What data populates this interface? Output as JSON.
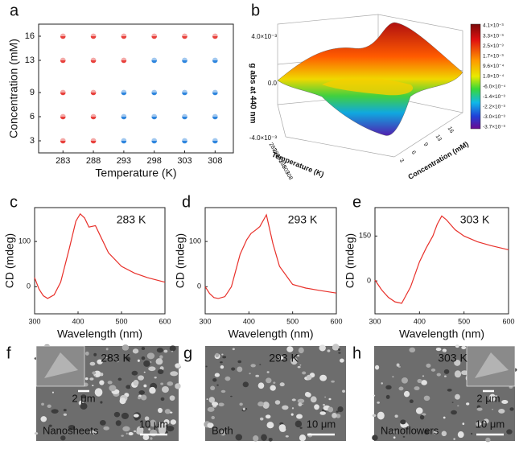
{
  "panel_labels": [
    "a",
    "b",
    "c",
    "d",
    "e",
    "f",
    "g",
    "h"
  ],
  "chart_data": [
    {
      "type": "scatter",
      "x_label": "Temperature (K)",
      "y_label": "Concentration (mM)",
      "xlim": [
        279,
        311
      ],
      "ylim": [
        1.5,
        17.5
      ],
      "xticks": [
        283,
        288,
        293,
        298,
        303,
        308
      ],
      "yticks": [
        3,
        6,
        9,
        13,
        16
      ],
      "series": [
        {
          "color": "#e8413c",
          "x": [
            283,
            288,
            293,
            298,
            303,
            308,
            283,
            288,
            293,
            283,
            288,
            283,
            288,
            283,
            288
          ],
          "y": [
            16,
            16,
            16,
            16,
            16,
            16,
            13,
            13,
            13,
            9,
            9,
            6,
            6,
            3,
            3
          ]
        },
        {
          "color": "#2f86de",
          "x": [
            298,
            303,
            308,
            293,
            298,
            303,
            308,
            293,
            298,
            303,
            308,
            293,
            298,
            303,
            308
          ],
          "y": [
            13,
            13,
            13,
            9,
            9,
            9,
            9,
            6,
            6,
            6,
            6,
            3,
            3,
            3,
            3
          ]
        }
      ]
    },
    {
      "type": "line",
      "annotation": "283 K",
      "x_label": "Wavelength (nm)",
      "y_label": "CD (mdeg)",
      "xlim": [
        300,
        600
      ],
      "ylim": [
        -60,
        175
      ],
      "xticks": [
        300,
        400,
        500,
        600
      ],
      "yticks": [
        0,
        100
      ],
      "x": [
        300,
        310,
        320,
        330,
        345,
        360,
        380,
        395,
        405,
        415,
        425,
        440,
        455,
        470,
        500,
        530,
        560,
        600
      ],
      "series": [
        {
          "color": "#e8302a",
          "values": [
            20,
            -5,
            -20,
            -26,
            -18,
            10,
            85,
            145,
            161,
            152,
            132,
            135,
            105,
            75,
            45,
            30,
            20,
            10
          ]
        }
      ]
    },
    {
      "type": "line",
      "annotation": "293 K",
      "x_label": "Wavelength (nm)",
      "y_label": "CD (mdeg)",
      "xlim": [
        300,
        600
      ],
      "ylim": [
        -60,
        175
      ],
      "xticks": [
        300,
        400,
        500,
        600
      ],
      "yticks": [
        0,
        100
      ],
      "x": [
        300,
        310,
        320,
        330,
        345,
        360,
        380,
        395,
        405,
        415,
        425,
        440,
        455,
        470,
        500,
        530,
        560,
        600
      ],
      "series": [
        {
          "color": "#e8302a",
          "values": [
            0,
            -15,
            -24,
            -26,
            -22,
            0,
            72,
            104,
            118,
            125,
            133,
            159,
            95,
            45,
            5,
            -3,
            -8,
            -14
          ]
        }
      ]
    },
    {
      "type": "line",
      "annotation": "303 K",
      "x_label": "Wavelength (nm)",
      "y_label": "CD (mdeg)",
      "xlim": [
        300,
        600
      ],
      "ylim": [
        -110,
        245
      ],
      "xticks": [
        300,
        400,
        500,
        600
      ],
      "yticks": [
        0,
        150
      ],
      "x": [
        300,
        315,
        330,
        345,
        360,
        380,
        400,
        415,
        430,
        440,
        450,
        460,
        480,
        500,
        530,
        560,
        600
      ],
      "series": [
        {
          "color": "#e8302a",
          "values": [
            3,
            -30,
            -55,
            -70,
            -75,
            -20,
            64,
            110,
            150,
            190,
            217,
            205,
            171,
            150,
            131,
            118,
            104
          ]
        }
      ]
    }
  ],
  "surface_panel": {
    "z_label": "g abs at 440 nm",
    "x_label": "Temperature (K)",
    "y_label": "Concentration (mM)",
    "z_ticks": [
      "4.0×10⁻³",
      "0.0",
      "-4.0×10⁻³"
    ],
    "x_ticks": [
      "283",
      "288",
      "293",
      "298",
      "303",
      "308"
    ],
    "y_ticks": [
      "3",
      "6",
      "9",
      "13",
      "16"
    ],
    "colorbar": [
      "4.1×10⁻³",
      "3.3×10⁻³",
      "2.5×10⁻³",
      "1.7×10⁻³",
      "9.6×10⁻⁴",
      "1.8×10⁻⁴",
      "-6.0×10⁻⁴",
      "-1.4×10⁻³",
      "-2.2×10⁻³",
      "-3.0×10⁻³",
      "-3.7×10⁻³"
    ]
  },
  "sem_images": [
    {
      "temperature": "283 K",
      "inset_scale": "2 μm",
      "caption": "Nanosheets",
      "scale": "10 μm"
    },
    {
      "temperature": "293 K",
      "caption": "Both",
      "scale": "10 μm"
    },
    {
      "temperature": "303 K",
      "inset_scale": "2 μm",
      "caption": "Nanoflowers",
      "scale": "10 μm"
    }
  ]
}
